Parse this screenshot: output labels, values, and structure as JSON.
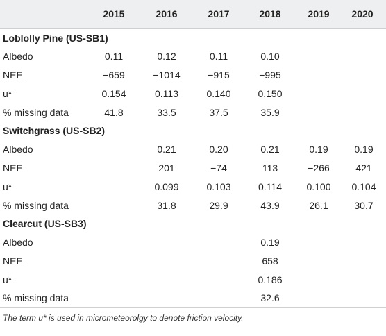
{
  "table": {
    "columns": [
      "",
      "2015",
      "2016",
      "2017",
      "2018",
      "2019",
      "2020"
    ],
    "sections": [
      {
        "title": "Loblolly Pine (US-SB1)",
        "rows": [
          {
            "label": "Albedo",
            "values": [
              "0.11",
              "0.12",
              "0.11",
              "0.10",
              "",
              ""
            ]
          },
          {
            "label": "NEE",
            "values": [
              "−659",
              "−1014",
              "−915",
              "−995",
              "",
              ""
            ]
          },
          {
            "label": "u*",
            "values": [
              "0.154",
              "0.113",
              "0.140",
              "0.150",
              "",
              ""
            ]
          },
          {
            "label": "% missing data",
            "values": [
              "41.8",
              "33.5",
              "37.5",
              "35.9",
              "",
              ""
            ]
          }
        ]
      },
      {
        "title": "Switchgrass (US-SB2)",
        "rows": [
          {
            "label": "Albedo",
            "values": [
              "",
              "0.21",
              "0.20",
              "0.21",
              "0.19",
              "0.19"
            ]
          },
          {
            "label": "NEE",
            "values": [
              "",
              "201",
              "−74",
              "113",
              "−266",
              "421"
            ]
          },
          {
            "label": "u*",
            "values": [
              "",
              "0.099",
              "0.103",
              "0.114",
              "0.100",
              "0.104"
            ]
          },
          {
            "label": "% missing data",
            "values": [
              "",
              "31.8",
              "29.9",
              "43.9",
              "26.1",
              "30.7"
            ]
          }
        ]
      },
      {
        "title": "Clearcut (US-SB3)",
        "rows": [
          {
            "label": "Albedo",
            "values": [
              "",
              "",
              "",
              "0.19",
              "",
              ""
            ]
          },
          {
            "label": "NEE",
            "values": [
              "",
              "",
              "",
              "658",
              "",
              ""
            ]
          },
          {
            "label": "u*",
            "values": [
              "",
              "",
              "",
              "0.186",
              "",
              ""
            ]
          },
          {
            "label": "% missing data",
            "values": [
              "",
              "",
              "",
              "32.6",
              "",
              ""
            ]
          }
        ]
      }
    ],
    "footnote": "The term u* is used in micrometeorolgy to denote friction velocity."
  }
}
